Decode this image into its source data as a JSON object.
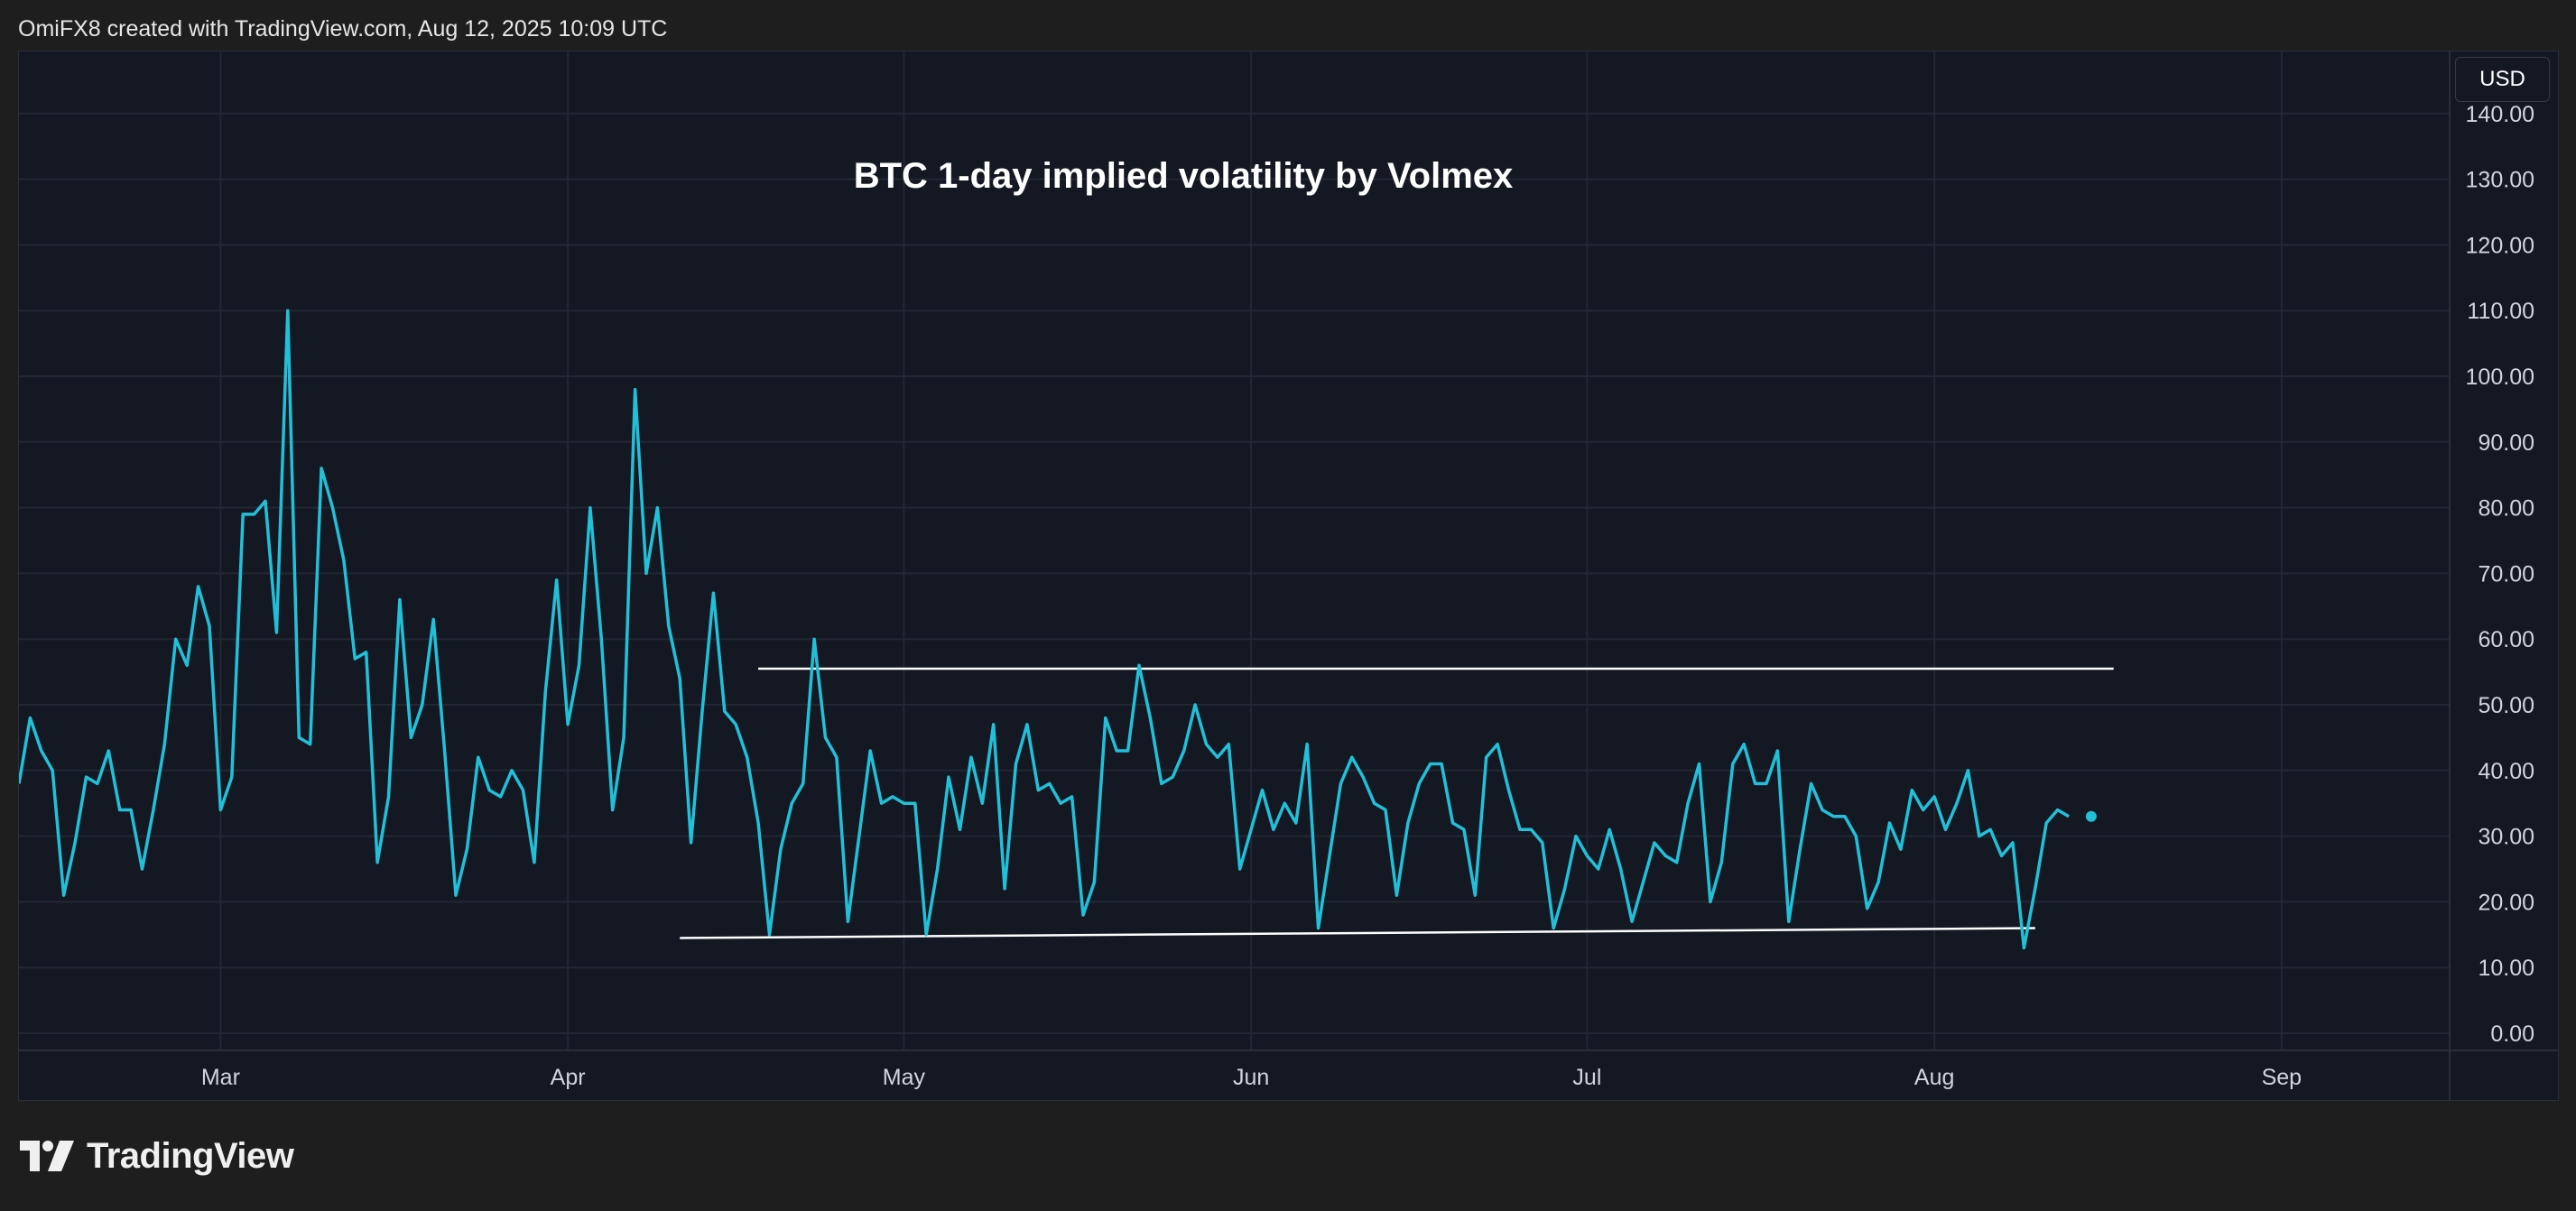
{
  "header": {
    "created_by": "OmiFX8 created with TradingView.com, Aug 12, 2025 10:09 UTC"
  },
  "toolbar": {
    "currency_label": "USD"
  },
  "brand": {
    "name": "TradingView",
    "logo_icon": "tradingview-logo-icon"
  },
  "colors": {
    "background": "#1e1e1f",
    "plot_background": "#141823",
    "grid": "#232734",
    "series": "#22c0d8",
    "trendline": "#ffffff",
    "axis_text": "#d1d4dc"
  },
  "chart_data": {
    "type": "line",
    "title": "BTC 1-day implied volatility by Volmex",
    "xlabel": "",
    "ylabel": "",
    "ylim": [
      0,
      140
    ],
    "grid": true,
    "y_ticks": [
      "0.00",
      "10.00",
      "20.00",
      "30.00",
      "40.00",
      "50.00",
      "60.00",
      "70.00",
      "80.00",
      "90.00",
      "100.00",
      "110.00",
      "120.00",
      "130.00",
      "140.00"
    ],
    "x_ticks": [
      {
        "label": "Mar",
        "date": "2025-03-01"
      },
      {
        "label": "Apr",
        "date": "2025-04-01"
      },
      {
        "label": "May",
        "date": "2025-05-01"
      },
      {
        "label": "Jun",
        "date": "2025-06-01"
      },
      {
        "label": "Jul",
        "date": "2025-07-01"
      },
      {
        "label": "Aug",
        "date": "2025-08-01"
      },
      {
        "label": "Sep",
        "date": "2025-09-01"
      }
    ],
    "x_range": [
      "2025-02-11",
      "2025-09-16"
    ],
    "series": [
      {
        "start_date": "2025-02-11",
        "values": [
          38,
          48,
          43,
          40,
          21,
          29,
          39,
          38,
          43,
          34,
          34,
          25,
          34,
          44,
          60,
          56,
          68,
          62,
          34,
          39,
          79,
          79,
          81,
          61,
          110,
          45,
          44,
          86,
          80,
          72,
          57,
          58,
          26,
          36,
          66,
          45,
          50,
          63,
          43,
          21,
          28,
          42,
          37,
          36,
          40,
          37,
          26,
          52,
          69,
          47,
          56,
          80,
          60,
          34,
          45,
          98,
          70,
          80,
          62,
          54,
          29,
          49,
          67,
          49,
          47,
          42,
          32,
          15,
          28,
          35,
          38,
          60,
          45,
          42,
          17,
          30,
          43,
          35,
          36,
          35,
          35,
          15,
          25,
          39,
          31,
          42,
          35,
          47,
          22,
          41,
          47,
          37,
          38,
          35,
          36,
          18,
          23,
          48,
          43,
          43,
          56,
          48,
          38,
          39,
          43,
          50,
          44,
          42,
          44,
          25,
          31,
          37,
          31,
          35,
          32,
          44,
          16,
          27,
          38,
          42,
          39,
          35,
          34,
          21,
          32,
          38,
          41,
          41,
          32,
          31,
          21,
          42,
          44,
          37,
          31,
          31,
          29,
          16,
          22,
          30,
          27,
          25,
          31,
          25,
          17,
          23,
          29,
          27,
          26,
          35,
          41,
          20,
          26,
          41,
          44,
          38,
          38,
          43,
          17,
          28,
          38,
          34,
          33,
          33,
          30,
          19,
          23,
          32,
          28,
          37,
          34,
          36,
          31,
          35,
          40,
          30,
          31,
          27,
          29,
          13,
          22,
          32,
          34,
          33
        ],
        "last_value": 33
      }
    ],
    "trendlines": [
      {
        "start": {
          "date": "2025-04-18",
          "value": 55.5
        },
        "end": {
          "date": "2025-08-17",
          "value": 55.5
        }
      },
      {
        "start": {
          "date": "2025-04-11",
          "value": 14.5
        },
        "end": {
          "date": "2025-08-10",
          "value": 16
        }
      }
    ]
  }
}
